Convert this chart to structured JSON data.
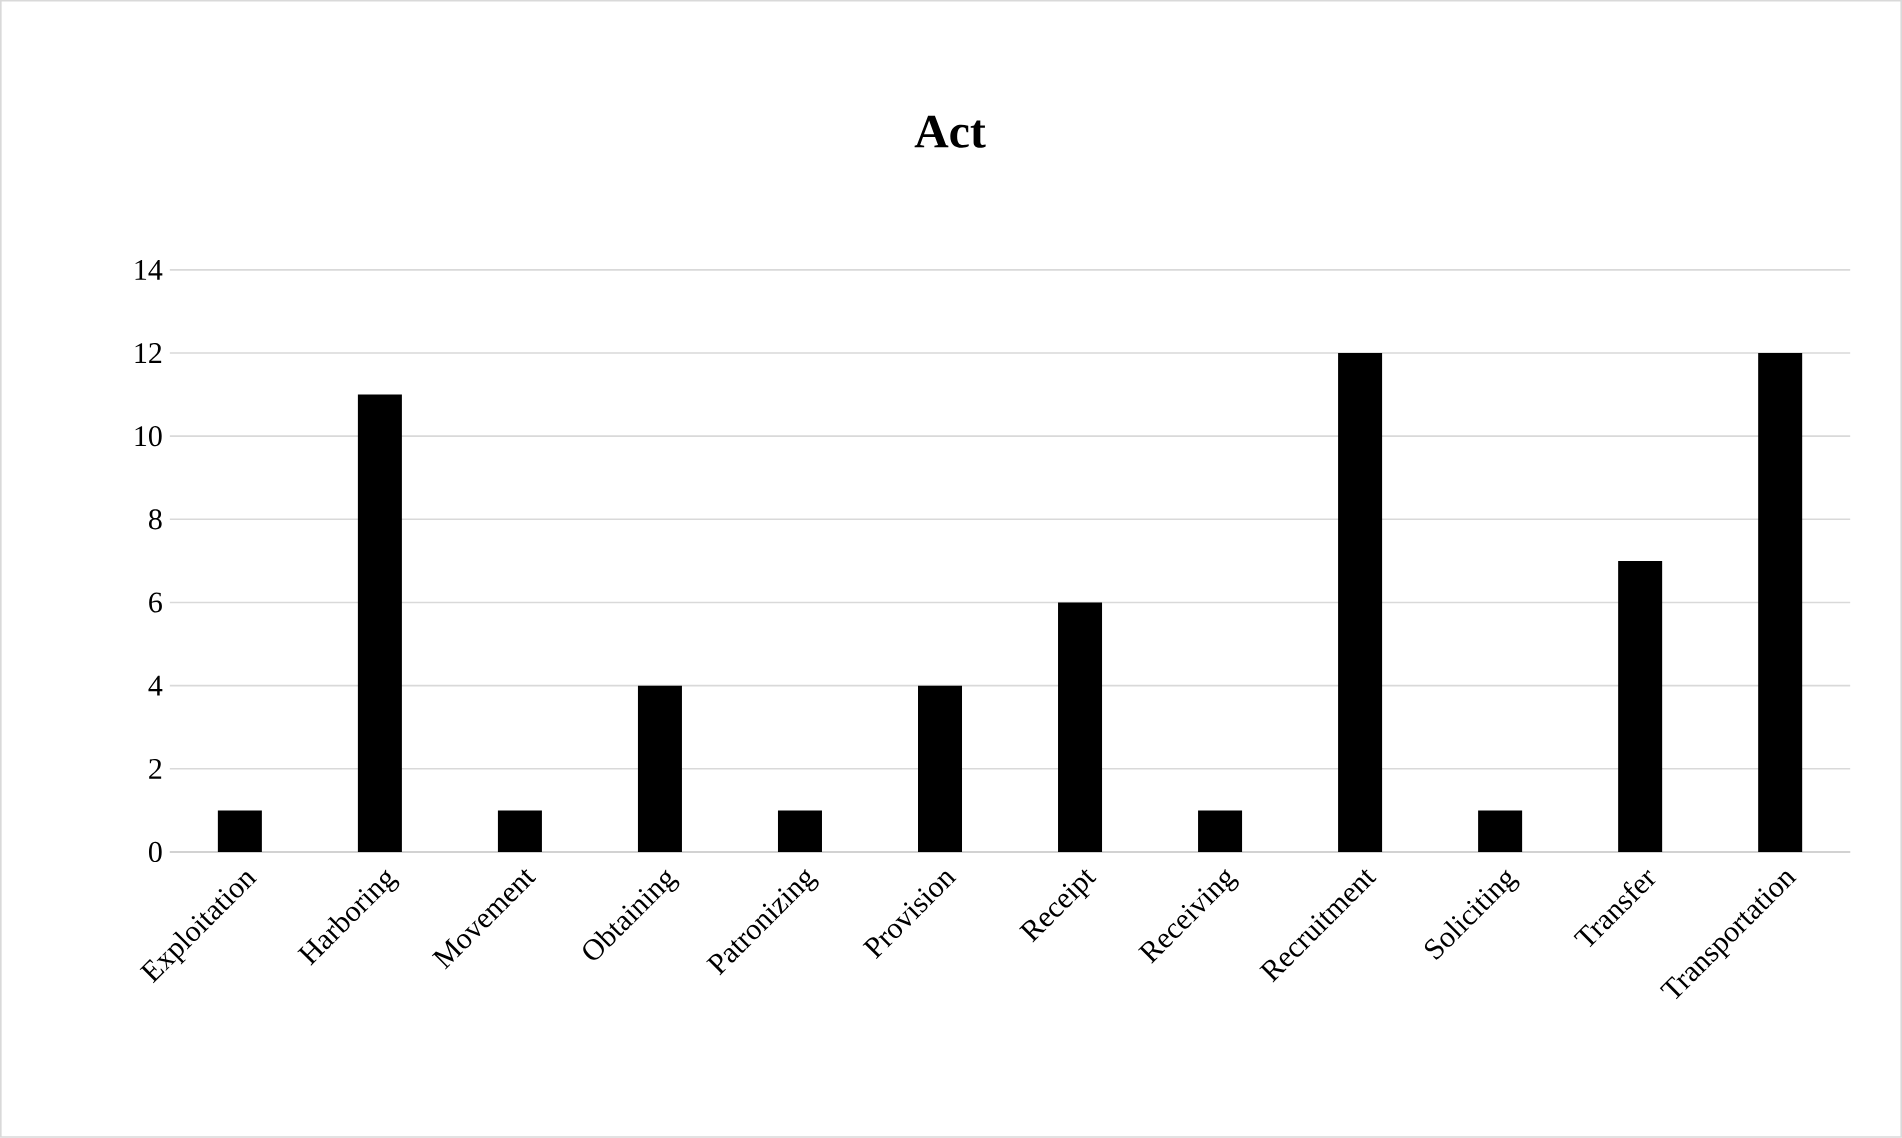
{
  "chart_data": {
    "type": "bar",
    "title": "Act",
    "categories": [
      "Exploitation",
      "Harboring",
      "Movement",
      "Obtaining",
      "Patronizing",
      "Provision",
      "Receipt",
      "Receiving",
      "Recruitment",
      "Soliciting",
      "Transfer",
      "Transportation"
    ],
    "values": [
      1,
      11,
      1,
      4,
      1,
      4,
      6,
      1,
      12,
      1,
      7,
      12
    ],
    "color": "#000000",
    "ylim": [
      0,
      14
    ],
    "yticks": [
      0,
      2,
      4,
      6,
      8,
      10,
      12,
      14
    ],
    "grid": "y"
  }
}
